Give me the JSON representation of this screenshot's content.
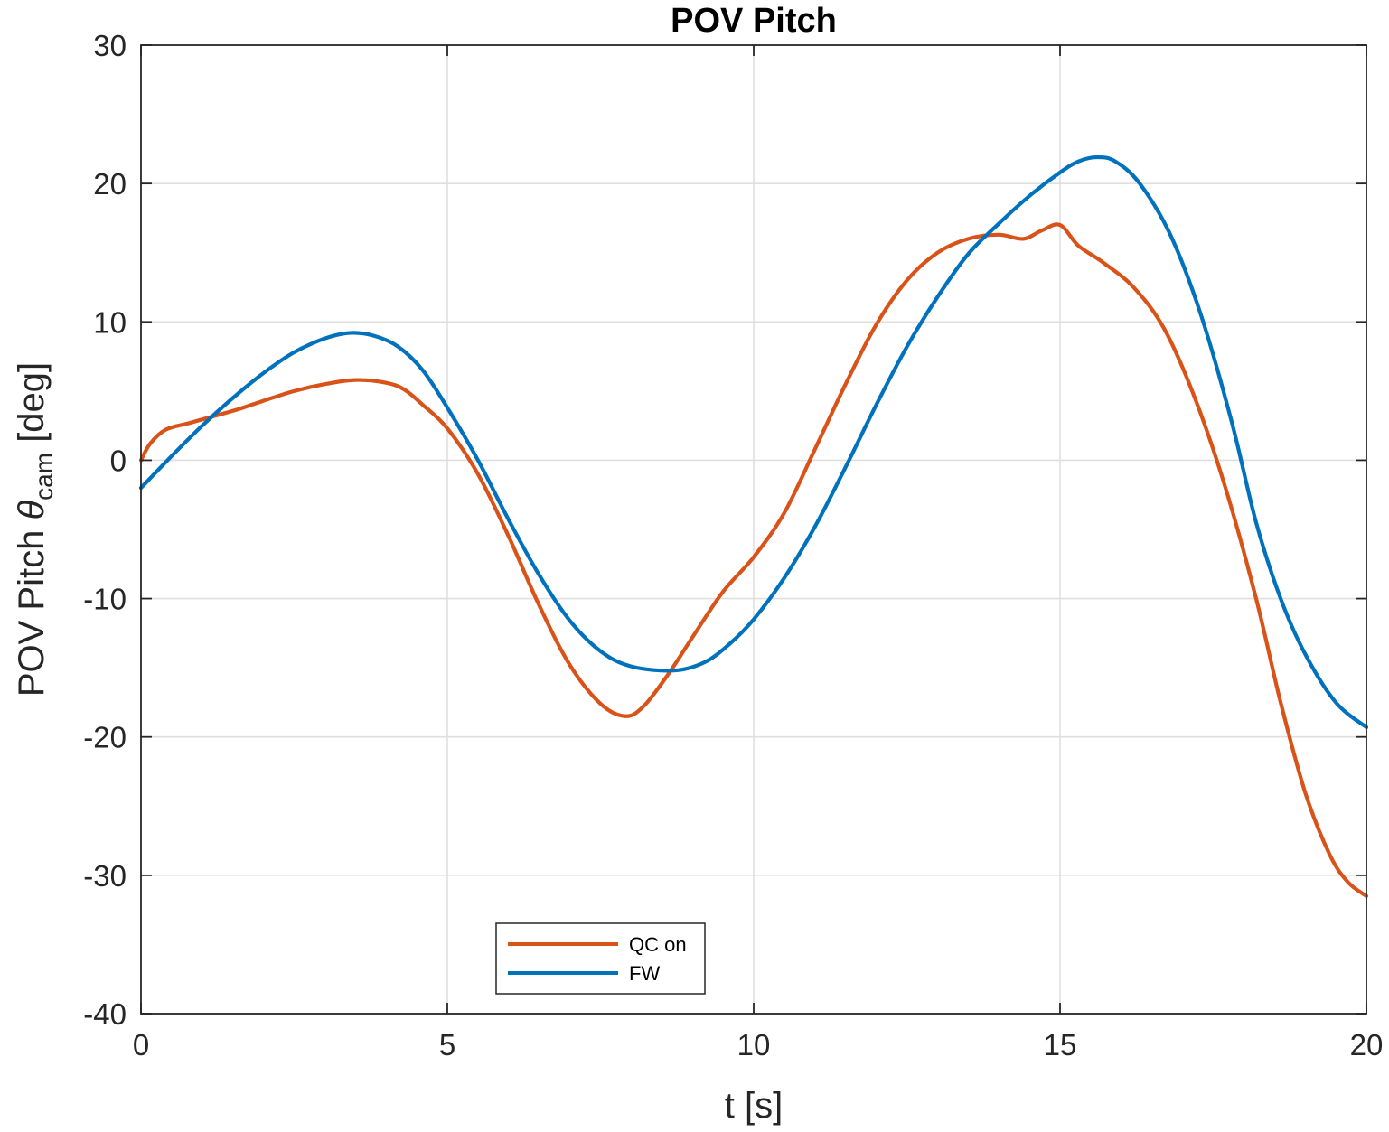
{
  "chart_data": {
    "type": "line",
    "title": "POV Pitch",
    "xlabel": "t [s]",
    "ylabel": {
      "prefix": "POV Pitch ",
      "symbol": "θ",
      "subscript": "cam",
      "suffix": " [deg]"
    },
    "xlim": [
      0,
      20
    ],
    "ylim": [
      -40,
      30
    ],
    "xticks": [
      0,
      5,
      10,
      15,
      20
    ],
    "yticks": [
      -40,
      -30,
      -20,
      -10,
      0,
      10,
      20,
      30
    ],
    "grid": true,
    "legend_location": "bottom-center",
    "series": [
      {
        "name": "QC on",
        "color": "#D95319",
        "points": [
          [
            0,
            0
          ],
          [
            0.15,
            1.2
          ],
          [
            0.4,
            2.2
          ],
          [
            0.8,
            2.7
          ],
          [
            1.2,
            3.2
          ],
          [
            1.6,
            3.7
          ],
          [
            2.0,
            4.3
          ],
          [
            2.5,
            5.0
          ],
          [
            3.0,
            5.5
          ],
          [
            3.5,
            5.8
          ],
          [
            4.0,
            5.6
          ],
          [
            4.3,
            5.1
          ],
          [
            4.6,
            4.0
          ],
          [
            5.0,
            2.3
          ],
          [
            5.5,
            -1.0
          ],
          [
            6.0,
            -5.5
          ],
          [
            6.5,
            -10.5
          ],
          [
            7.0,
            -14.8
          ],
          [
            7.5,
            -17.6
          ],
          [
            7.9,
            -18.5
          ],
          [
            8.2,
            -17.8
          ],
          [
            8.6,
            -15.5
          ],
          [
            9.0,
            -12.8
          ],
          [
            9.5,
            -9.5
          ],
          [
            10.0,
            -7.0
          ],
          [
            10.5,
            -3.8
          ],
          [
            11.0,
            0.8
          ],
          [
            11.5,
            5.5
          ],
          [
            12.0,
            9.8
          ],
          [
            12.5,
            13.0
          ],
          [
            13.0,
            15.0
          ],
          [
            13.5,
            16.0
          ],
          [
            14.0,
            16.3
          ],
          [
            14.4,
            16.0
          ],
          [
            14.7,
            16.6
          ],
          [
            15.0,
            17.0
          ],
          [
            15.3,
            15.5
          ],
          [
            15.7,
            14.3
          ],
          [
            16.2,
            12.5
          ],
          [
            16.7,
            9.5
          ],
          [
            17.2,
            4.5
          ],
          [
            17.7,
            -2.0
          ],
          [
            18.2,
            -10.0
          ],
          [
            18.6,
            -17.5
          ],
          [
            19.0,
            -24.0
          ],
          [
            19.4,
            -28.5
          ],
          [
            19.7,
            -30.5
          ],
          [
            20.0,
            -31.5
          ]
        ]
      },
      {
        "name": "FW",
        "color": "#0072BD",
        "points": [
          [
            0,
            -2.0
          ],
          [
            0.5,
            0.3
          ],
          [
            1.0,
            2.5
          ],
          [
            1.5,
            4.5
          ],
          [
            2.0,
            6.3
          ],
          [
            2.5,
            7.8
          ],
          [
            3.0,
            8.8
          ],
          [
            3.4,
            9.2
          ],
          [
            3.8,
            9.0
          ],
          [
            4.2,
            8.2
          ],
          [
            4.6,
            6.5
          ],
          [
            5.0,
            3.8
          ],
          [
            5.5,
            0.0
          ],
          [
            6.0,
            -4.3
          ],
          [
            6.5,
            -8.3
          ],
          [
            7.0,
            -11.6
          ],
          [
            7.5,
            -13.8
          ],
          [
            8.0,
            -14.9
          ],
          [
            8.7,
            -15.2
          ],
          [
            9.2,
            -14.6
          ],
          [
            9.6,
            -13.3
          ],
          [
            10.0,
            -11.5
          ],
          [
            10.5,
            -8.5
          ],
          [
            11.0,
            -4.8
          ],
          [
            11.5,
            -0.5
          ],
          [
            12.0,
            4.0
          ],
          [
            12.5,
            8.2
          ],
          [
            13.0,
            11.8
          ],
          [
            13.5,
            14.9
          ],
          [
            14.0,
            17.1
          ],
          [
            14.5,
            19.1
          ],
          [
            15.0,
            20.8
          ],
          [
            15.3,
            21.6
          ],
          [
            15.6,
            21.9
          ],
          [
            15.9,
            21.6
          ],
          [
            16.3,
            20.0
          ],
          [
            16.8,
            16.3
          ],
          [
            17.3,
            10.5
          ],
          [
            17.8,
            2.8
          ],
          [
            18.2,
            -4.5
          ],
          [
            18.6,
            -10.0
          ],
          [
            19.0,
            -14.0
          ],
          [
            19.5,
            -17.5
          ],
          [
            20.0,
            -19.3
          ]
        ]
      }
    ]
  }
}
